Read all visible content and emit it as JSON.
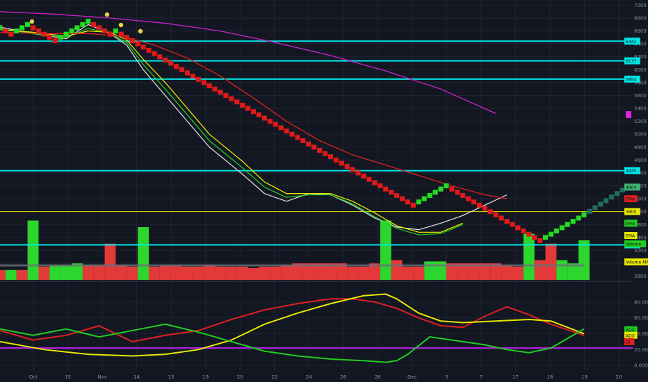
{
  "chart_data": {
    "type": "line",
    "price_axis": {
      "ticks": [
        "7000",
        "6800",
        "6600",
        "6400",
        "6200",
        "6000",
        "5800",
        "5600",
        "5400",
        "5200",
        "5000",
        "4800",
        "4600",
        "4400",
        "4200",
        "4000",
        "3800",
        "3600",
        "3400",
        "3200",
        "3000",
        "2800"
      ],
      "ylim": [
        2720,
        7080
      ]
    },
    "x_axis": {
      "labels": [
        "Oct",
        "15",
        "Nov",
        "14",
        "15",
        "19",
        "20",
        "22",
        "24",
        "26",
        "28",
        "Dec",
        "5",
        "7",
        "17",
        "18",
        "19",
        "20"
      ]
    },
    "horizontal_levels": [
      {
        "price": 6442,
        "label": "6442",
        "color": "#00e5e5"
      },
      {
        "price": 6137,
        "label": "6137",
        "color": "#00e5e5"
      },
      {
        "price": 5854,
        "label": "5854",
        "color": "#00e5e5"
      },
      {
        "price": 4435,
        "label": "4435",
        "color": "#00e5e5"
      },
      {
        "price": 3285,
        "label": "3285",
        "color": "#00e5e5"
      },
      {
        "price": 3800,
        "label": "3800",
        "color": "#e8e800"
      }
    ],
    "right_tags": [
      {
        "label": "4004",
        "price": 4180,
        "color": "#3cb371"
      },
      {
        "label": "EMA",
        "price": 4000,
        "color": "#e02020"
      },
      {
        "label": "EMA",
        "price": 3620,
        "color": "#22cc22"
      },
      {
        "label": "EMA",
        "price": 3430,
        "color": "#e8e800"
      },
      {
        "label": "Volume",
        "price": 3300,
        "color": "#22cc22"
      },
      {
        "label": "Volume MA",
        "price": 3020,
        "color": "#e8e800"
      }
    ],
    "series": [
      {
        "name": "EMA",
        "color": "#d8d8d8",
        "x": [
          0,
          6,
          12,
          16,
          20,
          23,
          26,
          30,
          34,
          38,
          44,
          48,
          52,
          56,
          60,
          64,
          68,
          72,
          76,
          80,
          84,
          88,
          92
        ],
        "y": [
          6660,
          6560,
          6480,
          6700,
          6560,
          6380,
          6000,
          5600,
          5200,
          4800,
          4380,
          4080,
          3960,
          4080,
          4060,
          3900,
          3700,
          3560,
          3520,
          3620,
          3740,
          3900,
          4060
        ]
      },
      {
        "name": "EMA",
        "color": "#22cc22",
        "x": [
          0,
          6,
          12,
          16,
          20,
          23,
          26,
          30,
          34,
          38,
          44,
          48,
          52,
          56,
          60,
          64,
          68,
          72,
          76,
          80,
          84
        ],
        "y": [
          6640,
          6560,
          6500,
          6640,
          6560,
          6420,
          6080,
          5700,
          5300,
          4900,
          4480,
          4180,
          4020,
          4060,
          4060,
          3920,
          3720,
          3540,
          3440,
          3460,
          3600
        ]
      },
      {
        "name": "EMA",
        "color": "#e8e800",
        "x": [
          0,
          6,
          12,
          16,
          20,
          23,
          26,
          30,
          34,
          38,
          44,
          48,
          52,
          56,
          60,
          64,
          68,
          72,
          76,
          80,
          84
        ],
        "y": [
          6620,
          6580,
          6520,
          6600,
          6580,
          6460,
          6160,
          5800,
          5400,
          5000,
          4580,
          4260,
          4080,
          4080,
          4080,
          3960,
          3780,
          3580,
          3480,
          3480,
          3620
        ]
      },
      {
        "name": "EMA",
        "color": "#e02020",
        "x": [
          0,
          8,
          16,
          22,
          28,
          34,
          40,
          46,
          52,
          58,
          64,
          70,
          76,
          82,
          88,
          92
        ],
        "y": [
          6580,
          6560,
          6560,
          6520,
          6380,
          6180,
          5900,
          5560,
          5200,
          4900,
          4680,
          4520,
          4360,
          4200,
          4060,
          4000
        ]
      },
      {
        "name": "",
        "color": "#cc22cc",
        "x": [
          0,
          10,
          20,
          30,
          40,
          50,
          60,
          70,
          80,
          90
        ],
        "y": [
          6900,
          6860,
          6800,
          6720,
          6600,
          6420,
          6220,
          5980,
          5700,
          5320
        ]
      }
    ],
    "renko_bricks": [
      {
        "x": 0,
        "p": 6650,
        "up": true
      },
      {
        "x": 1,
        "p": 6600,
        "up": false
      },
      {
        "x": 2,
        "p": 6550,
        "up": false
      },
      {
        "x": 3,
        "p": 6600,
        "up": true
      },
      {
        "x": 4,
        "p": 6650,
        "up": true
      },
      {
        "x": 5,
        "p": 6700,
        "up": true
      },
      {
        "x": 6,
        "p": 6650,
        "up": false
      },
      {
        "x": 7,
        "p": 6600,
        "up": false
      },
      {
        "x": 8,
        "p": 6550,
        "up": false
      },
      {
        "x": 9,
        "p": 6500,
        "up": false
      },
      {
        "x": 10,
        "p": 6450,
        "up": false
      },
      {
        "x": 11,
        "p": 6500,
        "up": true
      },
      {
        "x": 12,
        "p": 6550,
        "up": true
      },
      {
        "x": 13,
        "p": 6600,
        "up": true
      },
      {
        "x": 14,
        "p": 6650,
        "up": true
      },
      {
        "x": 15,
        "p": 6700,
        "up": true
      },
      {
        "x": 16,
        "p": 6750,
        "up": true
      },
      {
        "x": 17,
        "p": 6700,
        "up": false
      },
      {
        "x": 18,
        "p": 6650,
        "up": false
      },
      {
        "x": 19,
        "p": 6600,
        "up": false
      },
      {
        "x": 20,
        "p": 6550,
        "up": false
      },
      {
        "x": 21,
        "p": 6600,
        "up": true
      },
      {
        "x": 22,
        "p": 6550,
        "up": false
      },
      {
        "x": 23,
        "p": 6500,
        "up": false
      },
      {
        "x": 24,
        "p": 6450,
        "up": false
      },
      {
        "x": 25,
        "p": 6400,
        "up": false
      },
      {
        "x": 26,
        "p": 6350,
        "up": false
      },
      {
        "x": 27,
        "p": 6300,
        "up": false
      },
      {
        "x": 28,
        "p": 6250,
        "up": false
      },
      {
        "x": 29,
        "p": 6200,
        "up": false
      },
      {
        "x": 30,
        "p": 6150,
        "up": false
      },
      {
        "x": 31,
        "p": 6100,
        "up": false
      },
      {
        "x": 32,
        "p": 6050,
        "up": false
      },
      {
        "x": 33,
        "p": 6000,
        "up": false
      },
      {
        "x": 34,
        "p": 5950,
        "up": false
      },
      {
        "x": 35,
        "p": 5900,
        "up": false
      },
      {
        "x": 36,
        "p": 5850,
        "up": false
      },
      {
        "x": 37,
        "p": 5800,
        "up": false
      },
      {
        "x": 38,
        "p": 5750,
        "up": false
      },
      {
        "x": 39,
        "p": 5700,
        "up": false
      },
      {
        "x": 40,
        "p": 5650,
        "up": false
      },
      {
        "x": 41,
        "p": 5600,
        "up": false
      },
      {
        "x": 42,
        "p": 5550,
        "up": false
      },
      {
        "x": 43,
        "p": 5500,
        "up": false
      },
      {
        "x": 44,
        "p": 5450,
        "up": false
      },
      {
        "x": 45,
        "p": 5400,
        "up": false
      },
      {
        "x": 46,
        "p": 5350,
        "up": false
      },
      {
        "x": 47,
        "p": 5300,
        "up": false
      },
      {
        "x": 48,
        "p": 5250,
        "up": false
      },
      {
        "x": 49,
        "p": 5200,
        "up": false
      },
      {
        "x": 50,
        "p": 5150,
        "up": false
      },
      {
        "x": 51,
        "p": 5100,
        "up": false
      },
      {
        "x": 52,
        "p": 5050,
        "up": false
      },
      {
        "x": 53,
        "p": 5000,
        "up": false
      },
      {
        "x": 54,
        "p": 4950,
        "up": false
      },
      {
        "x": 55,
        "p": 4900,
        "up": false
      },
      {
        "x": 56,
        "p": 4850,
        "up": false
      },
      {
        "x": 57,
        "p": 4800,
        "up": false
      },
      {
        "x": 58,
        "p": 4750,
        "up": false
      },
      {
        "x": 59,
        "p": 4700,
        "up": false
      },
      {
        "x": 60,
        "p": 4650,
        "up": false
      },
      {
        "x": 61,
        "p": 4600,
        "up": false
      },
      {
        "x": 62,
        "p": 4550,
        "up": false
      },
      {
        "x": 63,
        "p": 4500,
        "up": false
      },
      {
        "x": 64,
        "p": 4450,
        "up": false
      },
      {
        "x": 65,
        "p": 4400,
        "up": false
      },
      {
        "x": 66,
        "p": 4350,
        "up": false
      },
      {
        "x": 67,
        "p": 4300,
        "up": false
      },
      {
        "x": 68,
        "p": 4250,
        "up": false
      },
      {
        "x": 69,
        "p": 4200,
        "up": false
      },
      {
        "x": 70,
        "p": 4150,
        "up": false
      },
      {
        "x": 71,
        "p": 4100,
        "up": false
      },
      {
        "x": 72,
        "p": 4050,
        "up": false
      },
      {
        "x": 73,
        "p": 4000,
        "up": false
      },
      {
        "x": 74,
        "p": 3950,
        "up": false
      },
      {
        "x": 75,
        "p": 3900,
        "up": false
      },
      {
        "x": 76,
        "p": 3950,
        "up": true
      },
      {
        "x": 77,
        "p": 4000,
        "up": true
      },
      {
        "x": 78,
        "p": 4050,
        "up": true
      },
      {
        "x": 79,
        "p": 4100,
        "up": true
      },
      {
        "x": 80,
        "p": 4150,
        "up": true
      },
      {
        "x": 81,
        "p": 4200,
        "up": true
      },
      {
        "x": 82,
        "p": 4150,
        "up": false
      },
      {
        "x": 83,
        "p": 4100,
        "up": false
      },
      {
        "x": 84,
        "p": 4050,
        "up": false
      },
      {
        "x": 85,
        "p": 4000,
        "up": false
      },
      {
        "x": 86,
        "p": 3950,
        "up": false
      },
      {
        "x": 87,
        "p": 3900,
        "up": false
      },
      {
        "x": 88,
        "p": 3850,
        "up": false
      },
      {
        "x": 89,
        "p": 3800,
        "up": false
      },
      {
        "x": 90,
        "p": 3750,
        "up": false
      },
      {
        "x": 91,
        "p": 3700,
        "up": false
      },
      {
        "x": 92,
        "p": 3650,
        "up": false
      },
      {
        "x": 93,
        "p": 3600,
        "up": false
      },
      {
        "x": 94,
        "p": 3550,
        "up": false
      },
      {
        "x": 95,
        "p": 3500,
        "up": false
      },
      {
        "x": 96,
        "p": 3450,
        "up": false
      },
      {
        "x": 97,
        "p": 3400,
        "up": false
      },
      {
        "x": 98,
        "p": 3350,
        "up": false
      },
      {
        "x": 99,
        "p": 3400,
        "up": true
      },
      {
        "x": 100,
        "p": 3450,
        "up": true
      },
      {
        "x": 101,
        "p": 3500,
        "up": true
      },
      {
        "x": 102,
        "p": 3550,
        "up": true
      },
      {
        "x": 103,
        "p": 3600,
        "up": true
      },
      {
        "x": 104,
        "p": 3650,
        "up": true
      },
      {
        "x": 105,
        "p": 3700,
        "up": true
      },
      {
        "x": 106,
        "p": 3750,
        "up": true
      }
    ],
    "volume": {
      "x": [
        0,
        2,
        4,
        6,
        8,
        10,
        12,
        14,
        16,
        18,
        20,
        22,
        24,
        26,
        28,
        30,
        32,
        34,
        36,
        38,
        40,
        42,
        44,
        46,
        48,
        50,
        52,
        54,
        56,
        58,
        60,
        62,
        64,
        66,
        68,
        70,
        72,
        74,
        76,
        78,
        80,
        82,
        84,
        86,
        88,
        90,
        92,
        94,
        96,
        98,
        100,
        102,
        104,
        106
      ],
      "values": [
        0.15,
        0.15,
        0.15,
        0.9,
        0.2,
        0.22,
        0.22,
        0.25,
        0.22,
        0.22,
        0.55,
        0.22,
        0.2,
        0.8,
        0.2,
        0.22,
        0.22,
        0.2,
        0.2,
        0.22,
        0.2,
        0.2,
        0.2,
        0.18,
        0.2,
        0.2,
        0.22,
        0.25,
        0.25,
        0.25,
        0.25,
        0.25,
        0.2,
        0.2,
        0.25,
        0.9,
        0.3,
        0.2,
        0.2,
        0.28,
        0.28,
        0.25,
        0.25,
        0.25,
        0.25,
        0.25,
        0.22,
        0.2,
        0.7,
        0.3,
        0.55,
        0.3,
        0.25,
        0.6
      ],
      "up": [
        false,
        true,
        false,
        true,
        false,
        true,
        true,
        true,
        false,
        false,
        false,
        false,
        false,
        true,
        false,
        false,
        false,
        false,
        false,
        false,
        false,
        false,
        false,
        false,
        false,
        false,
        false,
        false,
        false,
        false,
        false,
        false,
        false,
        false,
        false,
        true,
        false,
        false,
        false,
        true,
        true,
        false,
        false,
        false,
        false,
        false,
        false,
        false,
        true,
        false,
        false,
        true,
        true,
        true
      ]
    },
    "oscillator": {
      "ticks": [
        "80.0000",
        "60.0000",
        "40.0000",
        "20.0000",
        "0.0000"
      ],
      "ylim": [
        -6,
        100
      ],
      "level": {
        "value": 22,
        "color": "#b020e0"
      },
      "tags": [
        {
          "label": "ADX",
          "value": 45,
          "color": "#22cc22"
        },
        {
          "label": "ADX",
          "value": 38,
          "color": "#e8e800"
        },
        {
          "label": "DI",
          "value": 30,
          "color": "#e02020"
        }
      ],
      "series": [
        {
          "name": "",
          "color": "#e02020",
          "x": [
            0,
            6,
            12,
            18,
            24,
            30,
            36,
            42,
            48,
            54,
            56,
            58,
            60,
            64,
            68,
            72,
            76,
            80,
            84,
            88,
            92,
            96,
            100,
            106
          ],
          "y": [
            44,
            32,
            38,
            50,
            30,
            38,
            44,
            58,
            70,
            78,
            80,
            82,
            84,
            84,
            80,
            72,
            60,
            50,
            48,
            62,
            74,
            64,
            52,
            38
          ]
        },
        {
          "name": "",
          "color": "#e8e800",
          "x": [
            0,
            8,
            16,
            24,
            30,
            36,
            42,
            48,
            54,
            60,
            66,
            70,
            72,
            76,
            80,
            84,
            90,
            96,
            100,
            106
          ],
          "y": [
            30,
            20,
            14,
            12,
            14,
            20,
            32,
            52,
            66,
            78,
            88,
            90,
            84,
            66,
            56,
            54,
            56,
            58,
            56,
            40
          ]
        },
        {
          "name": "",
          "color": "#22cc22",
          "x": [
            0,
            6,
            12,
            18,
            24,
            30,
            36,
            42,
            48,
            54,
            60,
            66,
            70,
            72,
            74,
            78,
            80,
            84,
            88,
            92,
            96,
            100,
            106
          ],
          "y": [
            46,
            38,
            46,
            36,
            44,
            52,
            42,
            30,
            18,
            12,
            8,
            6,
            4,
            6,
            14,
            36,
            34,
            30,
            26,
            20,
            16,
            22,
            46
          ]
        }
      ]
    }
  }
}
